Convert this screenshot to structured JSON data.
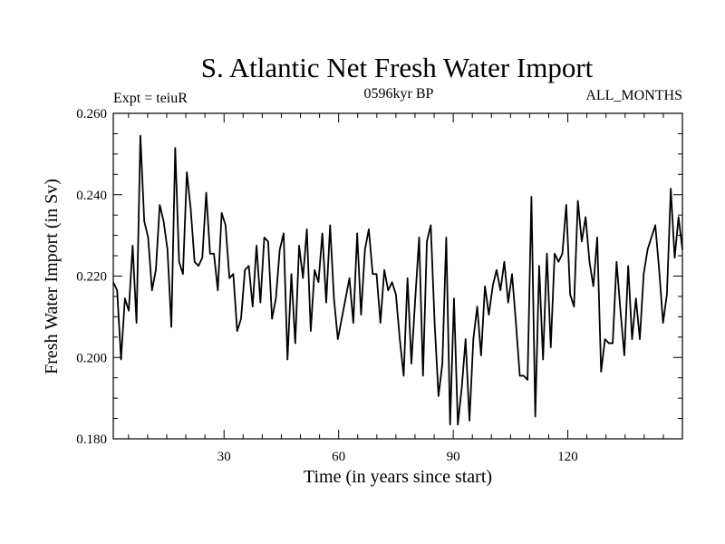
{
  "chart_data": {
    "type": "line",
    "title": "S. Atlantic Net Fresh Water Import",
    "subtitle_left": "Expt = teiuR",
    "subtitle_center": "0596kyr BP",
    "subtitle_right": "ALL_MONTHS",
    "xlabel": "Time (in years since start)",
    "ylabel": "Fresh Water Import (in Sv)",
    "xlim": [
      1,
      150
    ],
    "ylim": [
      0.18,
      0.26
    ],
    "xticks": [
      30,
      60,
      90,
      120
    ],
    "xtick_labels": [
      "30",
      "60",
      "90",
      "120"
    ],
    "yticks": [
      0.18,
      0.2,
      0.22,
      0.24,
      0.26
    ],
    "ytick_labels": [
      "0.180",
      "0.200",
      "0.220",
      "0.240",
      "0.260"
    ],
    "grid": false,
    "series": [
      {
        "name": "fresh_water_import",
        "color": "#000000",
        "y": [
          0.2185,
          0.2165,
          0.1995,
          0.2145,
          0.2115,
          0.2275,
          0.2085,
          0.2545,
          0.2335,
          0.2295,
          0.2165,
          0.2215,
          0.2375,
          0.2335,
          0.2265,
          0.2075,
          0.2515,
          0.2235,
          0.2205,
          0.2455,
          0.2365,
          0.2235,
          0.2225,
          0.2245,
          0.2405,
          0.2255,
          0.2255,
          0.2165,
          0.2355,
          0.2325,
          0.2195,
          0.2205,
          0.2065,
          0.2095,
          0.2215,
          0.2225,
          0.2125,
          0.2275,
          0.2135,
          0.2295,
          0.2285,
          0.2095,
          0.2145,
          0.2265,
          0.2305,
          0.1995,
          0.2205,
          0.2035,
          0.2275,
          0.2195,
          0.2315,
          0.2065,
          0.2215,
          0.2185,
          0.2305,
          0.2135,
          0.2325,
          0.2145,
          0.2045,
          0.2095,
          0.2145,
          0.2195,
          0.2085,
          0.2305,
          0.2105,
          0.2265,
          0.2315,
          0.2205,
          0.2205,
          0.2085,
          0.2215,
          0.2165,
          0.2185,
          0.2155,
          0.2045,
          0.1955,
          0.2195,
          0.1985,
          0.2145,
          0.2295,
          0.1955,
          0.2285,
          0.2325,
          0.2085,
          0.1905,
          0.1985,
          0.2295,
          0.1835,
          0.2145,
          0.1835,
          0.1925,
          0.2045,
          0.1845,
          0.2045,
          0.2125,
          0.2005,
          0.2175,
          0.2105,
          0.2175,
          0.2215,
          0.2165,
          0.2235,
          0.2135,
          0.2205,
          0.2085,
          0.1955,
          0.1955,
          0.1945,
          0.2395,
          0.1855,
          0.2225,
          0.1995,
          0.2255,
          0.2025,
          0.2255,
          0.2235,
          0.2255,
          0.2375,
          0.2155,
          0.2125,
          0.2385,
          0.2285,
          0.2345,
          0.2235,
          0.2175,
          0.2295,
          0.1965,
          0.2045,
          0.2035,
          0.2035,
          0.2235,
          0.2115,
          0.2005,
          0.2225,
          0.2045,
          0.2145,
          0.2045,
          0.2205,
          0.2265,
          0.2295,
          0.2325,
          0.2215,
          0.2085,
          0.2155,
          0.2415,
          0.2245,
          0.2345,
          0.2265
        ]
      }
    ]
  }
}
